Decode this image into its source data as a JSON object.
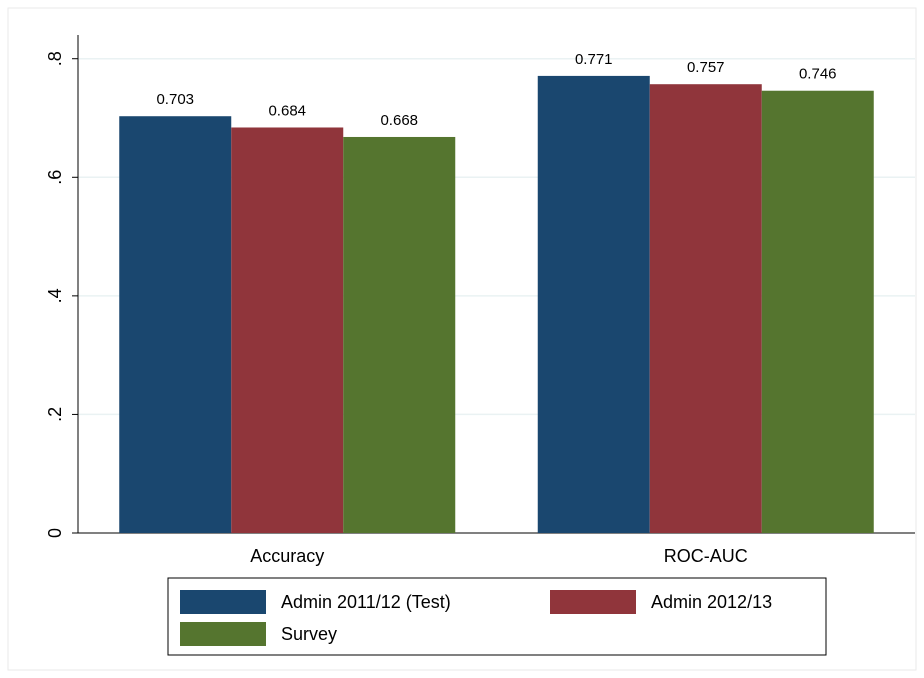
{
  "chart_data": {
    "type": "bar",
    "categories": [
      "Accuracy",
      "ROC-AUC"
    ],
    "series": [
      {
        "name": "Admin 2011/12 (Test)",
        "color": "#1a476f",
        "values": [
          0.703,
          0.771
        ]
      },
      {
        "name": "Admin 2012/13",
        "color": "#90353b",
        "values": [
          0.684,
          0.757
        ]
      },
      {
        "name": "Survey",
        "color": "#55752f",
        "values": [
          0.668,
          0.746
        ]
      }
    ],
    "ylim": [
      0,
      0.84
    ],
    "yticks": [
      0,
      {
        "value": 0.2,
        "label": ".2"
      },
      {
        "value": 0.4,
        "label": ".4"
      },
      {
        "value": 0.6,
        "label": ".6"
      },
      {
        "value": 0.8,
        "label": ".8"
      }
    ],
    "grid": true,
    "legend": "bottom"
  }
}
